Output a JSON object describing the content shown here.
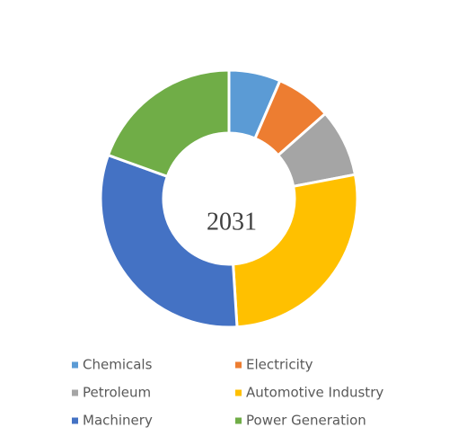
{
  "chart_data": {
    "type": "donut",
    "title": "2031",
    "categories": [
      "Chemicals",
      "Electricity",
      "Petroleum",
      "Automotive Industry",
      "Machinery",
      "Power Generation"
    ],
    "values": [
      6.5,
      7,
      8.5,
      27,
      31.5,
      19.5
    ],
    "colors": [
      "#5b9bd5",
      "#ed7d31",
      "#a5a5a5",
      "#ffc000",
      "#4472c4",
      "#70ad47"
    ],
    "legend": "bottom"
  }
}
